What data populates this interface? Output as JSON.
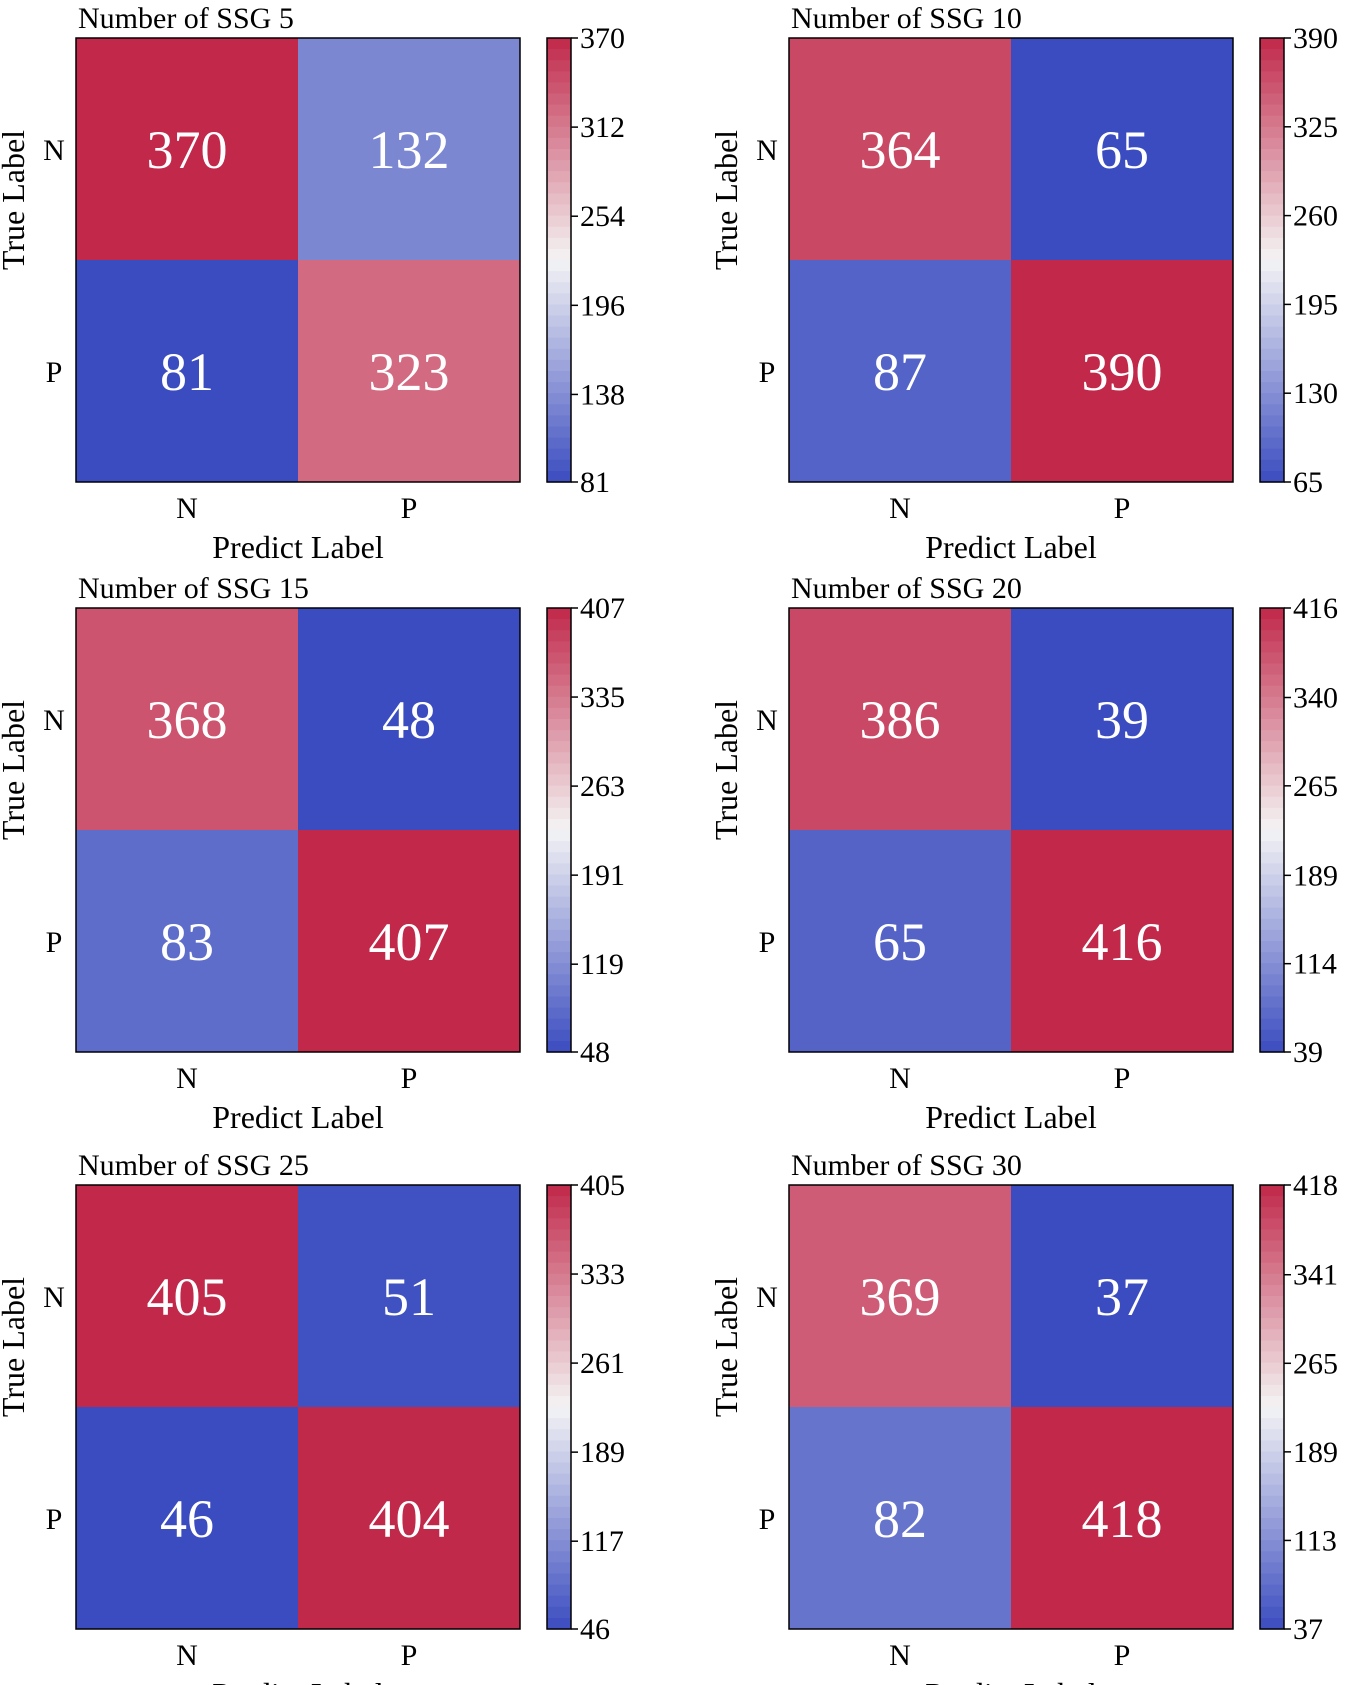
{
  "colors": {
    "low": "#3b4cc0",
    "mid": "#f4f4f4",
    "high": "#c1284a",
    "frame": "#000000",
    "cell_text": "#ffffff"
  },
  "chart_data": [
    {
      "type": "heatmap",
      "title": "Number of SSG 5",
      "xlabel": "Predict Label",
      "ylabel": "True Label",
      "x_categories": [
        "N",
        "P"
      ],
      "y_categories": [
        "N",
        "P"
      ],
      "values": [
        [
          370,
          132
        ],
        [
          81,
          323
        ]
      ],
      "colorbar": {
        "min": 81,
        "max": 370,
        "ticks": [
          370,
          312,
          254,
          196,
          138,
          81
        ]
      }
    },
    {
      "type": "heatmap",
      "title": "Number of SSG 10",
      "xlabel": "Predict Label",
      "ylabel": "True Label",
      "x_categories": [
        "N",
        "P"
      ],
      "y_categories": [
        "N",
        "P"
      ],
      "values": [
        [
          364,
          65
        ],
        [
          87,
          390
        ]
      ],
      "colorbar": {
        "min": 65,
        "max": 390,
        "ticks": [
          390,
          325,
          260,
          195,
          130,
          65
        ]
      }
    },
    {
      "type": "heatmap",
      "title": "Number of SSG 15",
      "xlabel": "Predict Label",
      "ylabel": "True Label",
      "x_categories": [
        "N",
        "P"
      ],
      "y_categories": [
        "N",
        "P"
      ],
      "values": [
        [
          368,
          48
        ],
        [
          83,
          407
        ]
      ],
      "colorbar": {
        "min": 48,
        "max": 407,
        "ticks": [
          407,
          335,
          263,
          191,
          119,
          48
        ]
      }
    },
    {
      "type": "heatmap",
      "title": "Number of SSG 20",
      "xlabel": "Predict Label",
      "ylabel": "True Label",
      "x_categories": [
        "N",
        "P"
      ],
      "y_categories": [
        "N",
        "P"
      ],
      "values": [
        [
          386,
          39
        ],
        [
          65,
          416
        ]
      ],
      "colorbar": {
        "min": 39,
        "max": 416,
        "ticks": [
          416,
          340,
          265,
          189,
          114,
          39
        ]
      }
    },
    {
      "type": "heatmap",
      "title": "Number of SSG 25",
      "xlabel": "Predict Label",
      "ylabel": "True Label",
      "x_categories": [
        "N",
        "P"
      ],
      "y_categories": [
        "N",
        "P"
      ],
      "values": [
        [
          405,
          51
        ],
        [
          46,
          404
        ]
      ],
      "colorbar": {
        "min": 46,
        "max": 405,
        "ticks": [
          405,
          333,
          261,
          189,
          117,
          46
        ]
      }
    },
    {
      "type": "heatmap",
      "title": "Number of SSG 30",
      "xlabel": "Predict Label",
      "ylabel": "True Label",
      "x_categories": [
        "N",
        "P"
      ],
      "y_categories": [
        "N",
        "P"
      ],
      "values": [
        [
          369,
          37
        ],
        [
          82,
          418
        ]
      ],
      "colorbar": {
        "min": 37,
        "max": 418,
        "ticks": [
          418,
          341,
          265,
          189,
          113,
          37
        ]
      }
    }
  ]
}
